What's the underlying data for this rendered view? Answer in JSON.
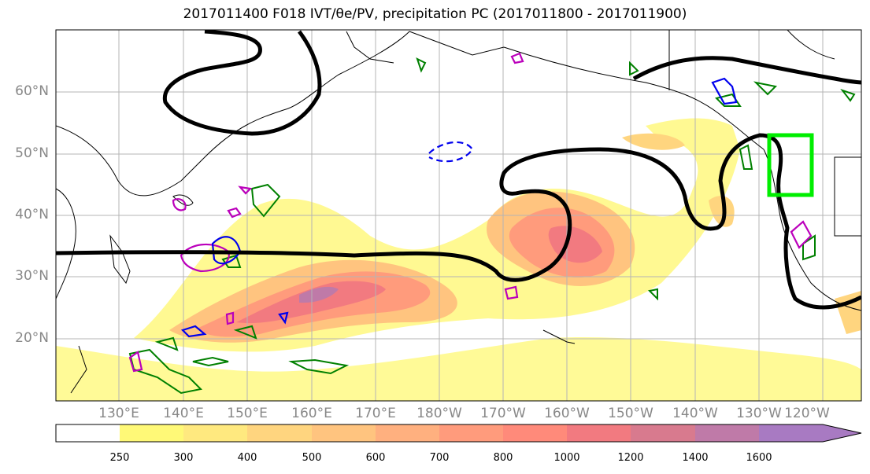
{
  "title": "2017011400 F018 IVT/θe/PV, precipitation PC (2017011800 - 2017011900)",
  "lat_labels": [
    "60°N",
    "50°N",
    "40°N",
    "30°N",
    "20°N"
  ],
  "lon_labels": [
    "130°E",
    "140°E",
    "150°E",
    "160°E",
    "170°E",
    "180°W",
    "170°W",
    "160°W",
    "150°W",
    "140°W",
    "130°W",
    "120°W"
  ],
  "colorbar": {
    "ticks": [
      "250",
      "300",
      "400",
      "500",
      "600",
      "700",
      "800",
      "1000",
      "1200",
      "1400",
      "1600"
    ],
    "colors": [
      "#ffffff",
      "#fff977",
      "#ffe97f",
      "#ffd57f",
      "#ffc47f",
      "#ffb07f",
      "#ff9b7c",
      "#ff8a7a",
      "#f27a80",
      "#d87a8e",
      "#bf7aa8",
      "#a87ac2"
    ]
  },
  "colors": {
    "ivt_contour": "#000000",
    "theta_e_pos": "#008000",
    "pv_magenta": "#bb00bb",
    "pv_blue": "#0000ee",
    "box": "#00ee00"
  }
}
